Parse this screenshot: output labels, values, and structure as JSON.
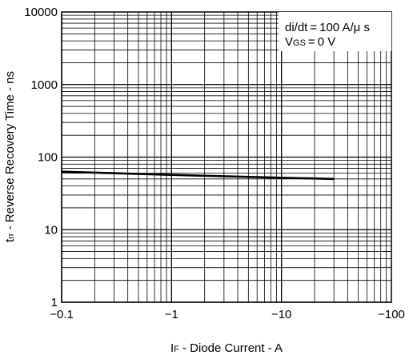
{
  "chart_data": {
    "type": "line",
    "x_scale": "log",
    "y_scale": "log",
    "xlim": [
      -0.1,
      -100
    ],
    "ylim": [
      1,
      10000
    ],
    "x_ticks": [
      -0.1,
      -1,
      -10,
      -100
    ],
    "x_tick_labels": [
      "−0.1",
      "−1",
      "−10",
      "−100"
    ],
    "y_ticks": [
      1,
      10,
      100,
      1000,
      10000
    ],
    "y_tick_labels": [
      "1",
      "10",
      "100",
      "1000",
      "10000"
    ],
    "xlabel": {
      "main": "I",
      "sub": "F",
      "rest": " - Diode Current - A"
    },
    "ylabel": {
      "main": "t",
      "sub": "rr",
      "rest": " - Reverse Recovery Time - ns"
    },
    "grid": true,
    "legend": {
      "placement": "top-right",
      "line1": "di/dt = 100 A/μ s",
      "line2": {
        "main": "V",
        "sub": "GS",
        "rest": " = 0 V"
      }
    },
    "series": [
      {
        "x": [
          -0.1,
          -1,
          -10,
          -30
        ],
        "y": [
          63,
          57,
          52,
          50
        ]
      }
    ]
  }
}
